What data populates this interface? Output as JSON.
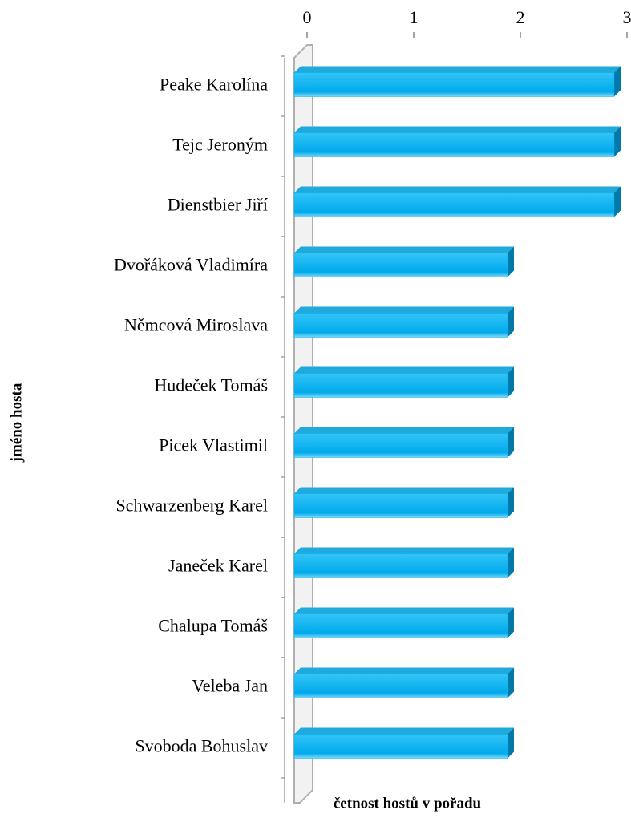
{
  "chart_data": {
    "type": "bar",
    "orientation": "horizontal",
    "xlabel": "četnost hostů v pořadu",
    "ylabel": "jméno hosta",
    "categories": [
      "Peake Karolína",
      "Tejc Jeroným",
      "Dienstbier Jiří",
      "Dvořáková Vladimíra",
      "Němcová Miroslava",
      "Hudeček Tomáš",
      "Picek Vlastimil",
      "Schwarzenberg Karel",
      "Janeček Karel",
      "Chalupa Tomáš",
      "Veleba Jan",
      "Svoboda Bohuslav"
    ],
    "values": [
      3,
      3,
      3,
      2,
      2,
      2,
      2,
      2,
      2,
      2,
      2,
      2
    ],
    "color": "#00b0f0",
    "xlim": [
      0,
      3
    ],
    "xticks": [
      0,
      1,
      2,
      3
    ]
  }
}
